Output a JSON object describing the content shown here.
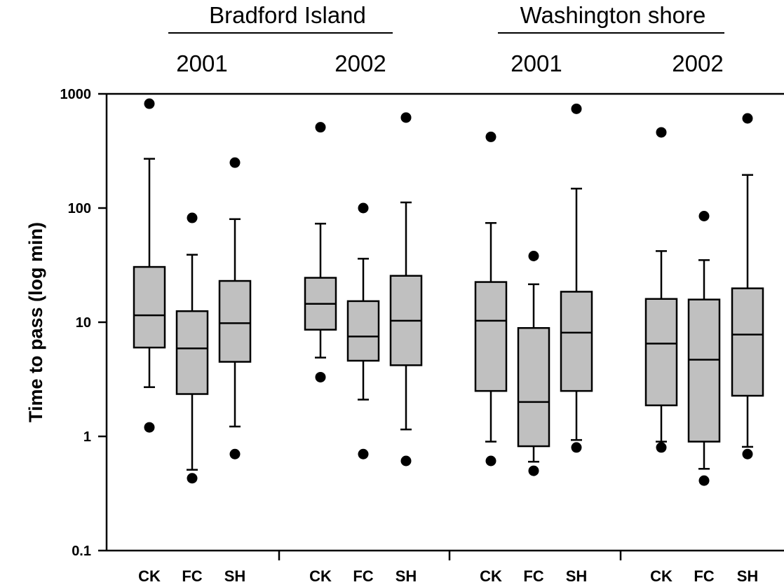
{
  "chart_data": {
    "type": "box",
    "ylabel": "Time to pass (log min)",
    "yscale": "log",
    "ylim": [
      0.1,
      1000
    ],
    "yticks": [
      {
        "value": 0.1,
        "label": "0.1"
      },
      {
        "value": 1,
        "label": "1"
      },
      {
        "value": 10,
        "label": "10"
      },
      {
        "value": 100,
        "label": "100"
      },
      {
        "value": 1000,
        "label": "1000"
      }
    ],
    "grid": false,
    "sites": [
      {
        "label": "Bradford Island",
        "panels": [
          0,
          1
        ]
      },
      {
        "label": "Washington shore",
        "panels": [
          2,
          3
        ]
      }
    ],
    "panels": [
      {
        "year": "2001",
        "groups": [
          {
            "category": "CK",
            "whisker_low": 2.7,
            "q1": 6.0,
            "median": 11.5,
            "q3": 30.5,
            "whisker_high": 270,
            "outliers": [
              1.2,
              820
            ]
          },
          {
            "category": "FC",
            "whisker_low": 0.51,
            "q1": 2.35,
            "median": 5.9,
            "q3": 12.5,
            "whisker_high": 39,
            "outliers": [
              0.43,
              82
            ]
          },
          {
            "category": "SH",
            "whisker_low": 1.22,
            "q1": 4.5,
            "median": 9.8,
            "q3": 23,
            "whisker_high": 80,
            "outliers": [
              0.7,
              250
            ]
          }
        ]
      },
      {
        "year": "2002",
        "groups": [
          {
            "category": "CK",
            "whisker_low": 4.9,
            "q1": 8.6,
            "median": 14.5,
            "q3": 24.5,
            "whisker_high": 73,
            "outliers": [
              3.3,
              510
            ]
          },
          {
            "category": "FC",
            "whisker_low": 2.1,
            "q1": 4.6,
            "median": 7.5,
            "q3": 15.3,
            "whisker_high": 36,
            "outliers": [
              0.7,
              100
            ]
          },
          {
            "category": "SH",
            "whisker_low": 1.15,
            "q1": 4.2,
            "median": 10.3,
            "q3": 25.5,
            "whisker_high": 112,
            "outliers": [
              0.61,
              620
            ]
          }
        ]
      },
      {
        "year": "2001",
        "groups": [
          {
            "category": "CK",
            "whisker_low": 0.9,
            "q1": 2.5,
            "median": 10.3,
            "q3": 22.5,
            "whisker_high": 74,
            "outliers": [
              0.61,
              420
            ]
          },
          {
            "category": "FC",
            "whisker_low": 0.6,
            "q1": 0.82,
            "median": 2.0,
            "q3": 8.9,
            "whisker_high": 21.5,
            "outliers": [
              0.5,
              38
            ]
          },
          {
            "category": "SH",
            "whisker_low": 0.93,
            "q1": 2.5,
            "median": 8.1,
            "q3": 18.5,
            "whisker_high": 148,
            "outliers": [
              0.8,
              740
            ]
          }
        ]
      },
      {
        "year": "2002",
        "groups": [
          {
            "category": "CK",
            "whisker_low": 0.9,
            "q1": 1.87,
            "median": 6.5,
            "q3": 16,
            "whisker_high": 42,
            "outliers": [
              0.8,
              460
            ]
          },
          {
            "category": "FC",
            "whisker_low": 0.52,
            "q1": 0.9,
            "median": 4.7,
            "q3": 15.8,
            "whisker_high": 35,
            "outliers": [
              0.41,
              85
            ]
          },
          {
            "category": "SH",
            "whisker_low": 0.81,
            "q1": 2.27,
            "median": 7.8,
            "q3": 19.8,
            "whisker_high": 195,
            "outliers": [
              0.7,
              610
            ]
          }
        ]
      }
    ],
    "colors": {
      "box_fill": "#c0c0c0",
      "line": "#000000",
      "outlier": "#000000"
    }
  }
}
